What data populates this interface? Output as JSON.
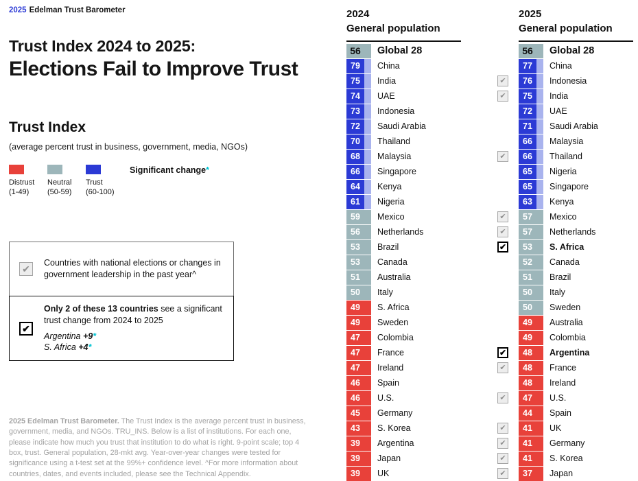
{
  "icons": {
    "checkmark": "✔"
  },
  "brand": {
    "year": "2025",
    "name": "Edelman Trust Barometer"
  },
  "title": {
    "line1": "Trust Index 2024 to 2025:",
    "line2": "Elections Fail to Improve Trust"
  },
  "legend": {
    "heading": "Trust Index",
    "subheading": "(average percent trust in business, government, media, NGOs)",
    "items": [
      {
        "label": "Distrust",
        "range": "(1-49)",
        "color": "#e8413a"
      },
      {
        "label": "Neutral",
        "range": "(50-59)",
        "color": "#9db6ba"
      },
      {
        "label": "Trust",
        "range": "(60-100)",
        "color": "#2b3ad5"
      }
    ],
    "significant_change_label": "Significant change",
    "significant_change_symbol": "*"
  },
  "callouts": {
    "elections": {
      "checkbox": "gray",
      "text": "Countries with national elections or changes in government leadership in the past year^"
    },
    "significant": {
      "checkbox": "black",
      "text_bold": "Only 2 of these 13 countries",
      "text_rest": " see a significant trust change from 2024 to 2025",
      "changes": [
        {
          "country": "Argentina",
          "delta": "+9"
        },
        {
          "country": "S. Africa",
          "delta": "+4"
        }
      ]
    }
  },
  "footnote": {
    "bold": "2025 Edelman Trust Barometer.",
    "text": "The Trust Index is the average percent trust in business, government, media, and NGOs. TRU_INS. Below is a list of institutions. For each one, please indicate how much you trust that institution to do what is right. 9-point scale; top 4 box, trust. General population, 28-mkt avg. Year-over-year changes were tested for significance using a t-test set at the 99%+ confidence level. ^For more information about countries, dates, and events included, please see the Technical Appendix."
  },
  "columns": [
    {
      "year": "2024",
      "subtitle": "General population",
      "checkbox_gutter": false,
      "rows": [
        {
          "score": 56,
          "label": "Global 28",
          "band": "global",
          "bold": true
        },
        {
          "score": 79,
          "label": "China",
          "band": "trust"
        },
        {
          "score": 75,
          "label": "India",
          "band": "trust"
        },
        {
          "score": 74,
          "label": "UAE",
          "band": "trust"
        },
        {
          "score": 73,
          "label": "Indonesia",
          "band": "trust"
        },
        {
          "score": 72,
          "label": "Saudi Arabia",
          "band": "trust"
        },
        {
          "score": 70,
          "label": "Thailand",
          "band": "trust"
        },
        {
          "score": 68,
          "label": "Malaysia",
          "band": "trust"
        },
        {
          "score": 66,
          "label": "Singapore",
          "band": "trust"
        },
        {
          "score": 64,
          "label": "Kenya",
          "band": "trust"
        },
        {
          "score": 61,
          "label": "Nigeria",
          "band": "trust"
        },
        {
          "score": 59,
          "label": "Mexico",
          "band": "neutral"
        },
        {
          "score": 56,
          "label": "Netherlands",
          "band": "neutral"
        },
        {
          "score": 53,
          "label": "Brazil",
          "band": "neutral"
        },
        {
          "score": 53,
          "label": "Canada",
          "band": "neutral"
        },
        {
          "score": 51,
          "label": "Australia",
          "band": "neutral"
        },
        {
          "score": 50,
          "label": "Italy",
          "band": "neutral"
        },
        {
          "score": 49,
          "label": "S. Africa",
          "band": "distrust"
        },
        {
          "score": 49,
          "label": "Sweden",
          "band": "distrust"
        },
        {
          "score": 47,
          "label": "Colombia",
          "band": "distrust"
        },
        {
          "score": 47,
          "label": "France",
          "band": "distrust"
        },
        {
          "score": 47,
          "label": "Ireland",
          "band": "distrust"
        },
        {
          "score": 46,
          "label": "Spain",
          "band": "distrust"
        },
        {
          "score": 46,
          "label": "U.S.",
          "band": "distrust"
        },
        {
          "score": 45,
          "label": "Germany",
          "band": "distrust"
        },
        {
          "score": 43,
          "label": "S. Korea",
          "band": "distrust"
        },
        {
          "score": 39,
          "label": "Argentina",
          "band": "distrust"
        },
        {
          "score": 39,
          "label": "Japan",
          "band": "distrust"
        },
        {
          "score": 39,
          "label": "UK",
          "band": "distrust"
        }
      ]
    },
    {
      "year": "2025",
      "subtitle": "General population",
      "checkbox_gutter": true,
      "rows": [
        {
          "score": 56,
          "label": "Global 28",
          "band": "global",
          "bold": true
        },
        {
          "score": 77,
          "label": "China",
          "band": "trust"
        },
        {
          "score": 76,
          "label": "Indonesia",
          "band": "trust",
          "checkbox": "gray"
        },
        {
          "score": 75,
          "label": "India",
          "band": "trust",
          "checkbox": "gray"
        },
        {
          "score": 72,
          "label": "UAE",
          "band": "trust"
        },
        {
          "score": 71,
          "label": "Saudi Arabia",
          "band": "trust"
        },
        {
          "score": 66,
          "label": "Malaysia",
          "band": "trust"
        },
        {
          "score": 66,
          "label": "Thailand",
          "band": "trust",
          "checkbox": "gray"
        },
        {
          "score": 65,
          "label": "Nigeria",
          "band": "trust"
        },
        {
          "score": 65,
          "label": "Singapore",
          "band": "trust"
        },
        {
          "score": 63,
          "label": "Kenya",
          "band": "trust"
        },
        {
          "score": 57,
          "label": "Mexico",
          "band": "neutral",
          "checkbox": "gray"
        },
        {
          "score": 57,
          "label": "Netherlands",
          "band": "neutral",
          "checkbox": "gray"
        },
        {
          "score": 53,
          "label": "S. Africa",
          "band": "neutral",
          "bold": true,
          "checkbox": "black"
        },
        {
          "score": 52,
          "label": "Canada",
          "band": "neutral"
        },
        {
          "score": 51,
          "label": "Brazil",
          "band": "neutral"
        },
        {
          "score": 50,
          "label": "Italy",
          "band": "neutral"
        },
        {
          "score": 50,
          "label": "Sweden",
          "band": "neutral"
        },
        {
          "score": 49,
          "label": "Australia",
          "band": "distrust"
        },
        {
          "score": 49,
          "label": "Colombia",
          "band": "distrust"
        },
        {
          "score": 48,
          "label": "Argentina",
          "band": "distrust",
          "bold": true,
          "checkbox": "black"
        },
        {
          "score": 48,
          "label": "France",
          "band": "distrust",
          "checkbox": "gray"
        },
        {
          "score": 48,
          "label": "Ireland",
          "band": "distrust"
        },
        {
          "score": 47,
          "label": "U.S.",
          "band": "distrust",
          "checkbox": "gray"
        },
        {
          "score": 44,
          "label": "Spain",
          "band": "distrust"
        },
        {
          "score": 41,
          "label": "UK",
          "band": "distrust",
          "checkbox": "gray"
        },
        {
          "score": 41,
          "label": "Germany",
          "band": "distrust",
          "checkbox": "gray"
        },
        {
          "score": 41,
          "label": "S. Korea",
          "band": "distrust",
          "checkbox": "gray"
        },
        {
          "score": 37,
          "label": "Japan",
          "band": "distrust",
          "checkbox": "gray"
        }
      ]
    }
  ],
  "chart_data": {
    "type": "table",
    "title": "Trust Index 2024 to 2025: Elections Fail to Improve Trust",
    "metric": "Trust Index (average percent trust in business, government, media, NGOs)",
    "value_range": [
      0,
      100
    ],
    "bands": [
      {
        "label": "Distrust",
        "range": "1-49",
        "color": "#e8413a"
      },
      {
        "label": "Neutral",
        "range": "50-59",
        "color": "#9db6ba"
      },
      {
        "label": "Trust",
        "range": "60-100",
        "color": "#2b3ad5"
      }
    ],
    "series": [
      {
        "name": "2024 General population",
        "categories": [
          "Global 28",
          "China",
          "India",
          "UAE",
          "Indonesia",
          "Saudi Arabia",
          "Thailand",
          "Malaysia",
          "Singapore",
          "Kenya",
          "Nigeria",
          "Mexico",
          "Netherlands",
          "Brazil",
          "Canada",
          "Australia",
          "Italy",
          "S. Africa",
          "Sweden",
          "Colombia",
          "France",
          "Ireland",
          "Spain",
          "U.S.",
          "Germany",
          "S. Korea",
          "Argentina",
          "Japan",
          "UK"
        ],
        "values": [
          56,
          79,
          75,
          74,
          73,
          72,
          70,
          68,
          66,
          64,
          61,
          59,
          56,
          53,
          53,
          51,
          50,
          49,
          49,
          47,
          47,
          47,
          46,
          46,
          45,
          43,
          39,
          39,
          39
        ]
      },
      {
        "name": "2025 General population",
        "categories": [
          "Global 28",
          "China",
          "Indonesia",
          "India",
          "UAE",
          "Saudi Arabia",
          "Malaysia",
          "Thailand",
          "Nigeria",
          "Singapore",
          "Kenya",
          "Mexico",
          "Netherlands",
          "S. Africa",
          "Canada",
          "Brazil",
          "Italy",
          "Sweden",
          "Australia",
          "Colombia",
          "Argentina",
          "France",
          "Ireland",
          "U.S.",
          "Spain",
          "UK",
          "Germany",
          "S. Korea",
          "Japan"
        ],
        "values": [
          56,
          77,
          76,
          75,
          72,
          71,
          66,
          66,
          65,
          65,
          63,
          57,
          57,
          53,
          52,
          51,
          50,
          50,
          49,
          49,
          48,
          48,
          48,
          47,
          44,
          41,
          41,
          41,
          37
        ]
      }
    ],
    "election_marked_countries": [
      "Indonesia",
      "India",
      "Thailand",
      "Mexico",
      "Netherlands",
      "S. Africa",
      "Argentina",
      "France",
      "U.S.",
      "UK",
      "Germany",
      "S. Korea",
      "Japan"
    ],
    "significant_changes": [
      {
        "country": "Argentina",
        "change": "+9"
      },
      {
        "country": "S. Africa",
        "change": "+4"
      }
    ]
  }
}
